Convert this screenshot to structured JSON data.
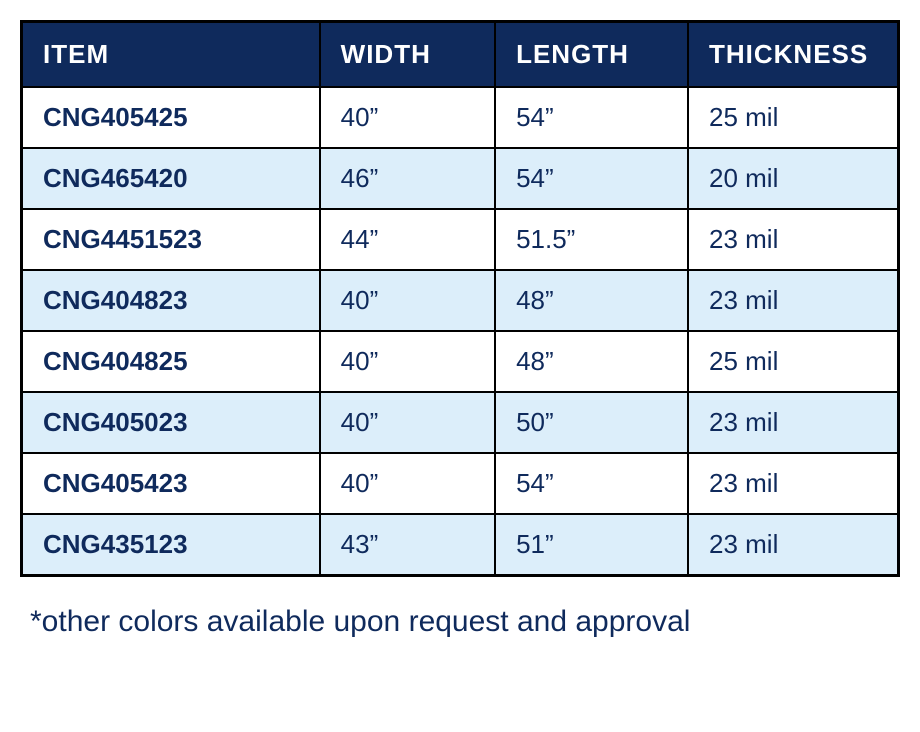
{
  "table": {
    "type": "table",
    "header_bg_color": "#0f2a5c",
    "header_text_color": "#ffffff",
    "row_odd_bg_color": "#ffffff",
    "row_even_bg_color": "#dceefa",
    "text_color": "#0f2a5c",
    "border_color": "#000000",
    "columns": [
      {
        "key": "item",
        "label": "ITEM",
        "width_pct": 34,
        "bold": true
      },
      {
        "key": "width",
        "label": "WIDTH",
        "width_pct": 20,
        "bold": false
      },
      {
        "key": "length",
        "label": "LENGTH",
        "width_pct": 22,
        "bold": false
      },
      {
        "key": "thickness",
        "label": "THICKNESS",
        "width_pct": 24,
        "bold": false
      }
    ],
    "rows": [
      {
        "item": "CNG405425",
        "width": "40”",
        "length": "54”",
        "thickness": "25 mil"
      },
      {
        "item": "CNG465420",
        "width": "46”",
        "length": "54”",
        "thickness": "20 mil"
      },
      {
        "item": "CNG4451523",
        "width": "44”",
        "length": "51.5”",
        "thickness": "23 mil"
      },
      {
        "item": "CNG404823",
        "width": "40”",
        "length": "48”",
        "thickness": "23 mil"
      },
      {
        "item": "CNG404825",
        "width": "40”",
        "length": "48”",
        "thickness": "25 mil"
      },
      {
        "item": "CNG405023",
        "width": "40”",
        "length": "50”",
        "thickness": "23 mil"
      },
      {
        "item": "CNG405423",
        "width": "40”",
        "length": "54”",
        "thickness": "23 mil"
      },
      {
        "item": "CNG435123",
        "width": "43”",
        "length": "51”",
        "thickness": "23 mil"
      }
    ]
  },
  "footnote": {
    "text": "*other colors available upon request and approval",
    "fontsize": 30,
    "text_color": "#0f2a5c"
  }
}
